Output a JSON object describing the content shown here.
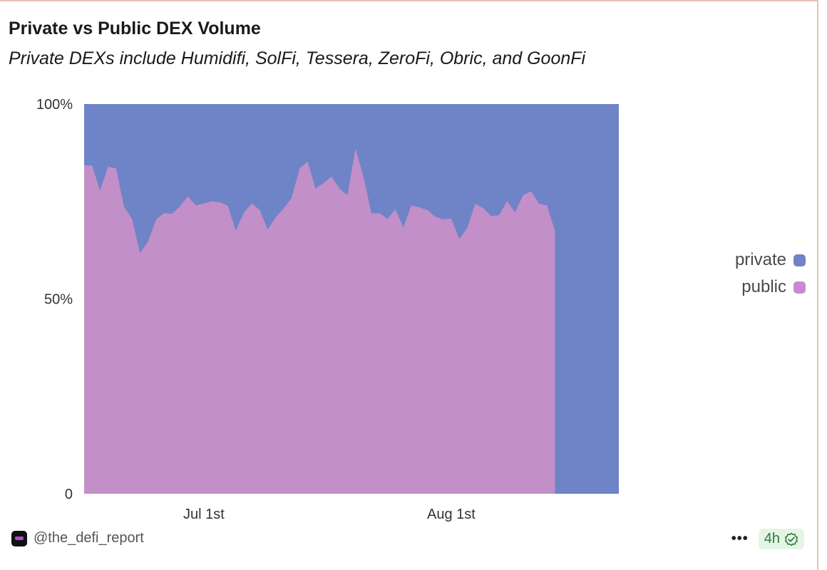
{
  "title": "Private vs Public DEX Volume",
  "subtitle": "Private DEXs include Humidifi, SolFi, Tessera, ZeroFi, Obric, and GoonFi",
  "footer": {
    "handle": "@the_defi_report",
    "more_label": "•••",
    "age": "4h",
    "check_icon": "verified-check-icon"
  },
  "colors": {
    "private": "#6f84c6",
    "public": "#c28fc9"
  },
  "chart_data": {
    "type": "area",
    "stacked": true,
    "normalized": true,
    "x_start": "2025-06-16",
    "x_end": "2025-08-22",
    "x_ticks": [
      {
        "date": "2025-07-01",
        "label": "Jul 1st"
      },
      {
        "date": "2025-08-01",
        "label": "Aug 1st"
      }
    ],
    "y_ticks": [
      {
        "value": 0,
        "label": "0"
      },
      {
        "value": 50,
        "label": "50%"
      },
      {
        "value": 100,
        "label": "100%"
      }
    ],
    "ylim": [
      0,
      100
    ],
    "legend": [
      "private",
      "public"
    ],
    "legend_position": "right",
    "series": [
      {
        "name": "public",
        "points": [
          [
            "2025-06-16",
            84.3
          ],
          [
            "2025-06-17",
            84.2
          ],
          [
            "2025-06-18",
            77.8
          ],
          [
            "2025-06-19",
            83.9
          ],
          [
            "2025-06-20",
            83.5
          ],
          [
            "2025-06-21",
            73.6
          ],
          [
            "2025-06-22",
            70.5
          ],
          [
            "2025-06-23",
            61.8
          ],
          [
            "2025-06-24",
            64.6
          ],
          [
            "2025-06-25",
            70.3
          ],
          [
            "2025-06-26",
            72.0
          ],
          [
            "2025-06-27",
            71.8
          ],
          [
            "2025-06-28",
            73.7
          ],
          [
            "2025-06-29",
            76.3
          ],
          [
            "2025-06-30",
            74.0
          ],
          [
            "2025-07-01",
            74.5
          ],
          [
            "2025-07-02",
            75.0
          ],
          [
            "2025-07-03",
            74.8
          ],
          [
            "2025-07-04",
            73.9
          ],
          [
            "2025-07-05",
            67.5
          ],
          [
            "2025-07-06",
            72.0
          ],
          [
            "2025-07-07",
            74.5
          ],
          [
            "2025-07-08",
            72.8
          ],
          [
            "2025-07-09",
            67.8
          ],
          [
            "2025-07-10",
            70.9
          ],
          [
            "2025-07-11",
            73.2
          ],
          [
            "2025-07-12",
            75.9
          ],
          [
            "2025-07-13",
            83.5
          ],
          [
            "2025-07-14",
            85.2
          ],
          [
            "2025-07-15",
            78.3
          ],
          [
            "2025-07-16",
            79.7
          ],
          [
            "2025-07-17",
            81.4
          ],
          [
            "2025-07-18",
            78.3
          ],
          [
            "2025-07-19",
            76.6
          ],
          [
            "2025-07-20",
            88.5
          ],
          [
            "2025-07-21",
            81.4
          ],
          [
            "2025-07-22",
            71.9
          ],
          [
            "2025-07-23",
            72.0
          ],
          [
            "2025-07-24",
            70.5
          ],
          [
            "2025-07-25",
            73.0
          ],
          [
            "2025-07-26",
            68.3
          ],
          [
            "2025-07-27",
            74.0
          ],
          [
            "2025-07-28",
            73.5
          ],
          [
            "2025-07-29",
            72.8
          ],
          [
            "2025-07-30",
            71.1
          ],
          [
            "2025-07-31",
            70.4
          ],
          [
            "2025-08-01",
            70.6
          ],
          [
            "2025-08-02",
            65.4
          ],
          [
            "2025-08-03",
            68.1
          ],
          [
            "2025-08-04",
            74.4
          ],
          [
            "2025-08-05",
            73.3
          ],
          [
            "2025-08-06",
            71.2
          ],
          [
            "2025-08-07",
            71.5
          ],
          [
            "2025-08-08",
            75.1
          ],
          [
            "2025-08-09",
            72.2
          ],
          [
            "2025-08-10",
            76.6
          ],
          [
            "2025-08-11",
            77.6
          ],
          [
            "2025-08-12",
            74.4
          ],
          [
            "2025-08-13",
            74.0
          ],
          [
            "2025-08-14",
            67.4
          ]
        ]
      },
      {
        "name": "private",
        "note": "fills remainder to 100%"
      }
    ]
  }
}
